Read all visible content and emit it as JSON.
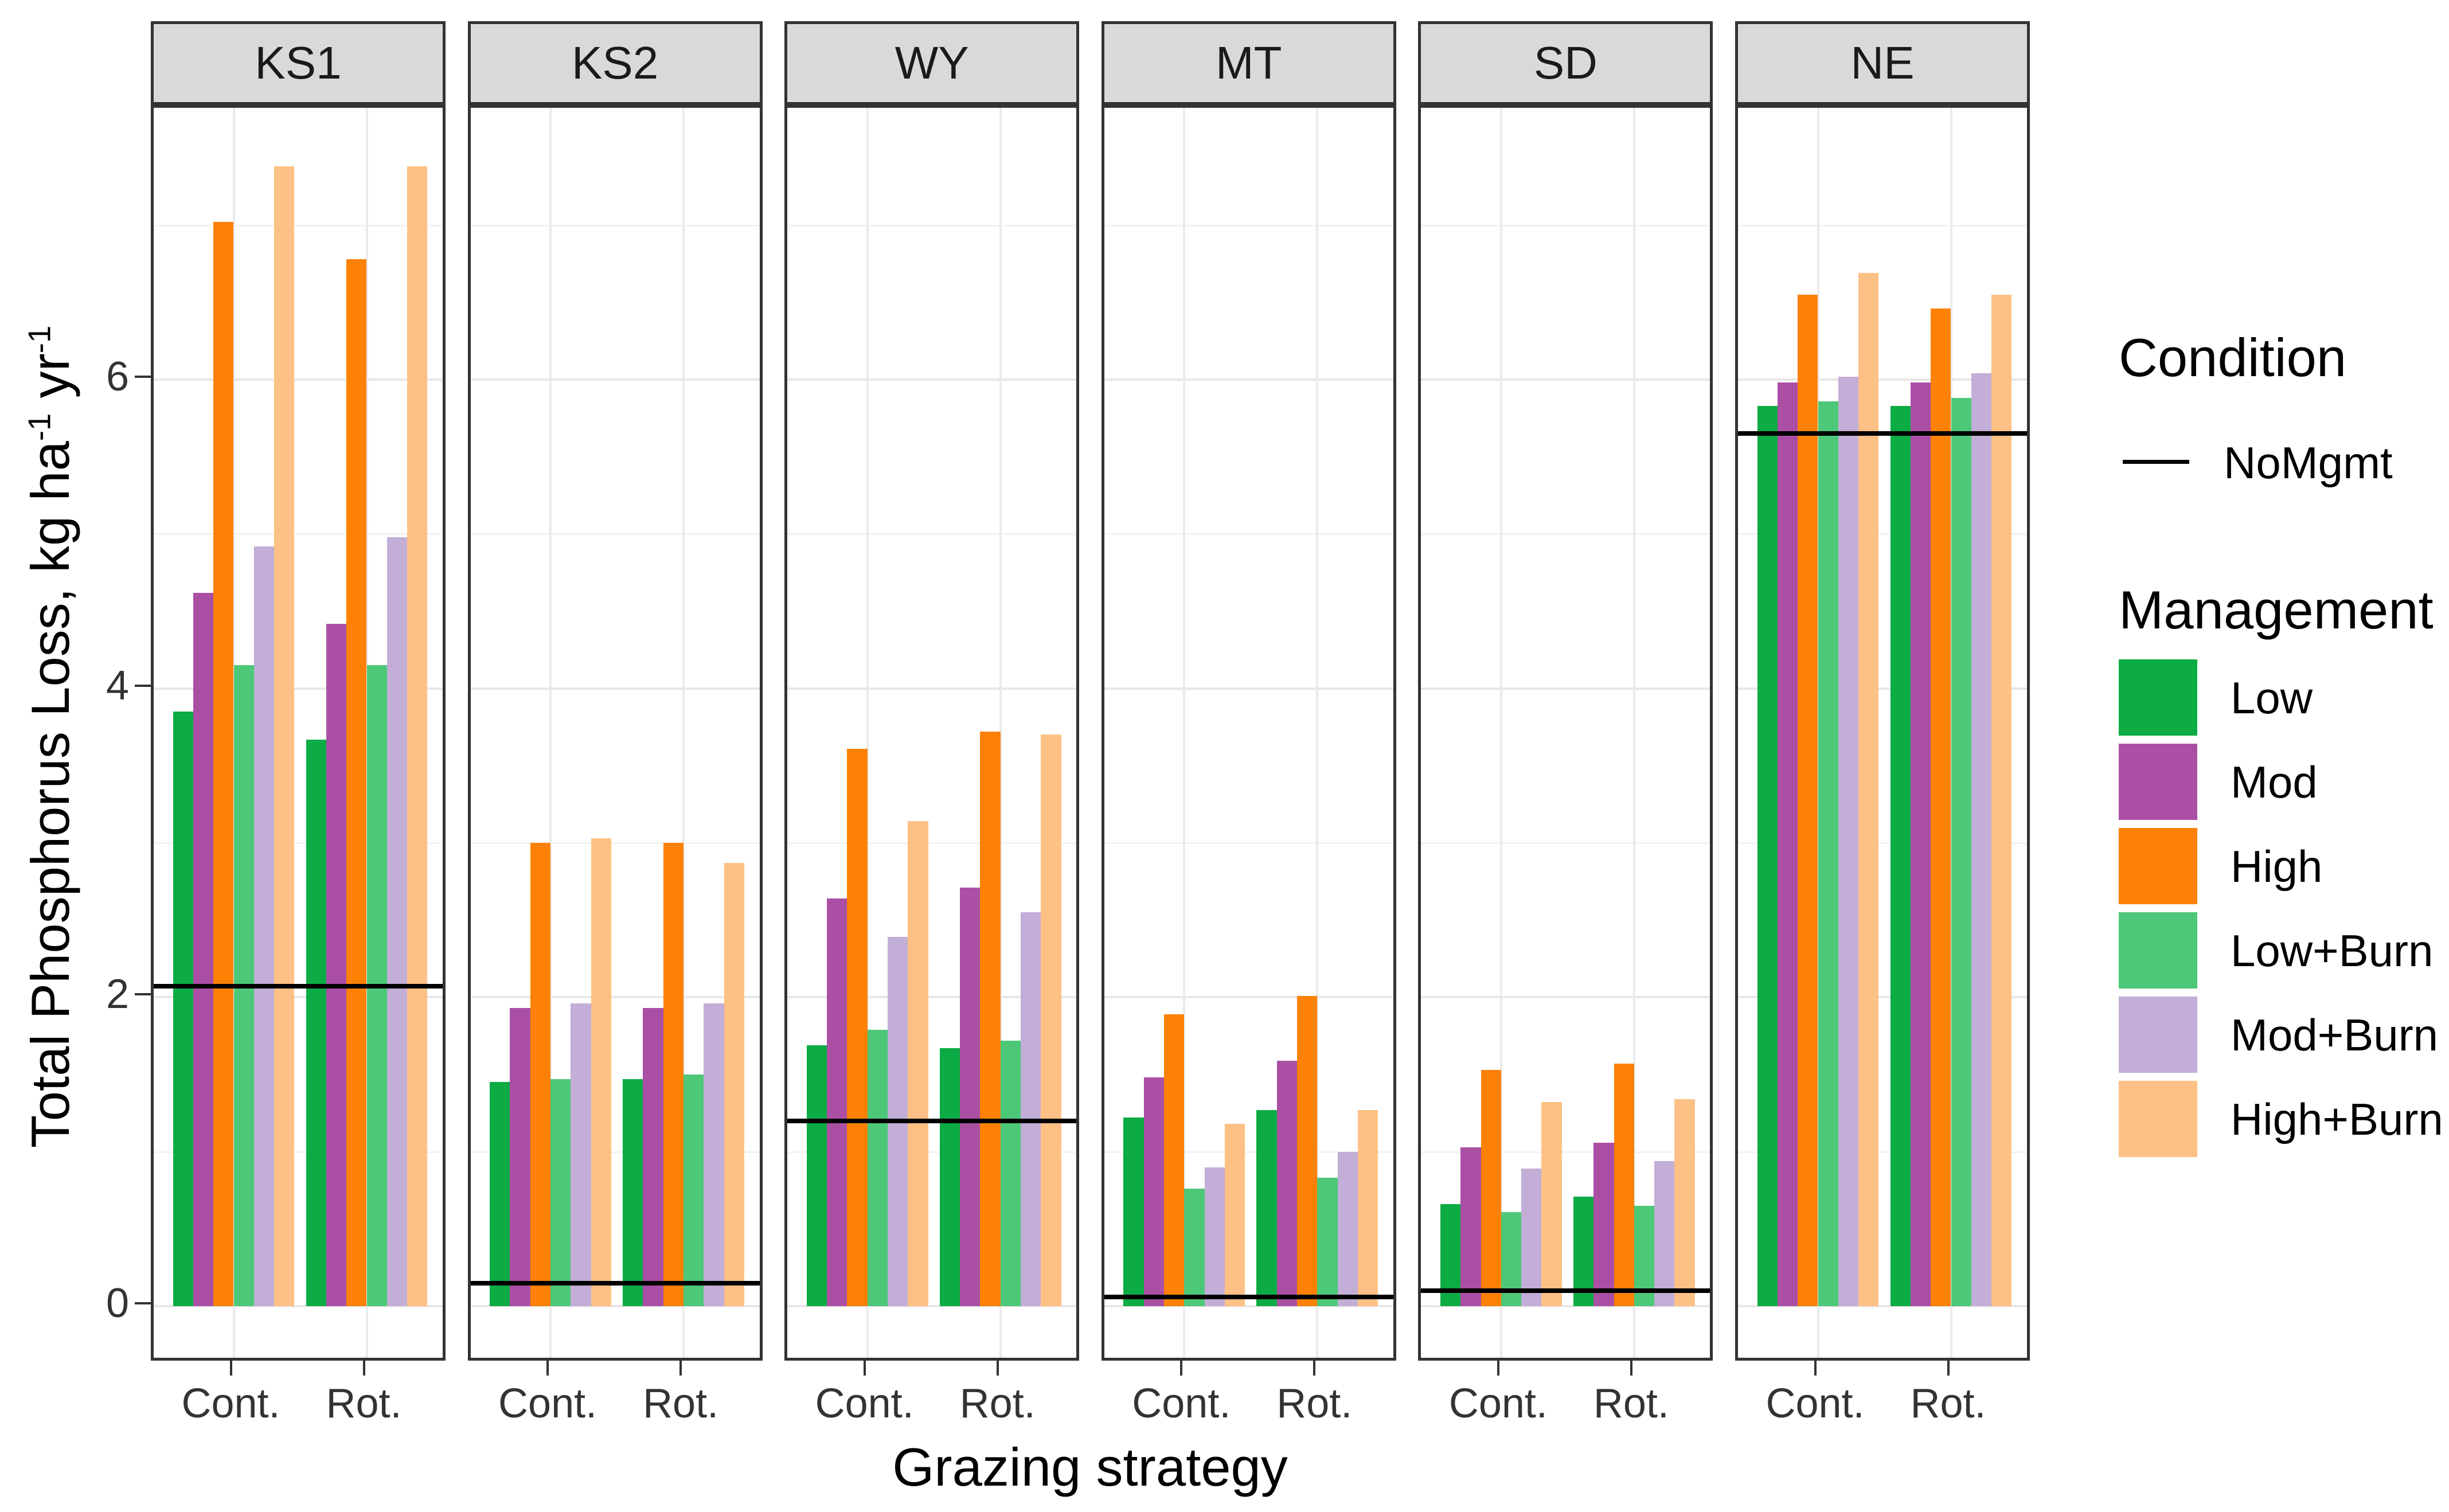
{
  "chart_data": {
    "type": "bar",
    "title": "",
    "xlabel": "Grazing strategy",
    "ylabel_parts": [
      "Total Phosphorus Loss, kg ha",
      "-1",
      " yr",
      "-1"
    ],
    "facets": [
      "KS1",
      "KS2",
      "WY",
      "MT",
      "SD",
      "NE"
    ],
    "groups": [
      "Cont.",
      "Rot."
    ],
    "series": [
      "Low",
      "Mod",
      "High",
      "Low+Burn",
      "Mod+Burn",
      "High+Burn"
    ],
    "series_colors": [
      "#0cab44",
      "#ab4fa5",
      "#fc8105",
      "#4dc878",
      "#c2aed6",
      "#fec185"
    ],
    "values": {
      "KS1": {
        "Cont.": [
          3.85,
          4.62,
          7.02,
          4.15,
          4.92,
          7.38
        ],
        "Rot.": [
          3.67,
          4.42,
          6.78,
          4.15,
          4.98,
          7.38
        ]
      },
      "KS2": {
        "Cont.": [
          1.45,
          1.93,
          3.0,
          1.47,
          1.96,
          3.03
        ],
        "Rot.": [
          1.47,
          1.93,
          3.0,
          1.5,
          1.96,
          2.87
        ]
      },
      "WY": {
        "Cont.": [
          1.69,
          2.64,
          3.61,
          1.79,
          2.39,
          3.14
        ],
        "Rot.": [
          1.67,
          2.71,
          3.72,
          1.72,
          2.55,
          3.7
        ]
      },
      "MT": {
        "Cont.": [
          1.22,
          1.48,
          1.89,
          0.76,
          0.9,
          1.18
        ],
        "Rot.": [
          1.27,
          1.59,
          2.01,
          0.83,
          1.0,
          1.27
        ]
      },
      "SD": {
        "Cont.": [
          0.66,
          1.03,
          1.53,
          0.61,
          0.89,
          1.32
        ],
        "Rot.": [
          0.71,
          1.06,
          1.57,
          0.65,
          0.94,
          1.34
        ]
      },
      "NE": {
        "Cont.": [
          5.83,
          5.98,
          6.55,
          5.86,
          6.02,
          6.69
        ],
        "Rot.": [
          5.83,
          5.98,
          6.46,
          5.88,
          6.04,
          6.55
        ]
      }
    },
    "nomgmt_line": {
      "KS1": 2.07,
      "KS2": 0.15,
      "WY": 1.2,
      "MT": 0.06,
      "SD": 0.1,
      "NE": 5.65
    },
    "yticks": [
      0,
      2,
      4,
      6
    ],
    "yminor": [
      1,
      3,
      5,
      7
    ],
    "ylim": [
      -0.37,
      7.76
    ],
    "grid": "on",
    "legend_position": "right",
    "legend": {
      "condition_title": "Condition",
      "condition_item": "NoMgmt",
      "management_title": "Management"
    }
  }
}
